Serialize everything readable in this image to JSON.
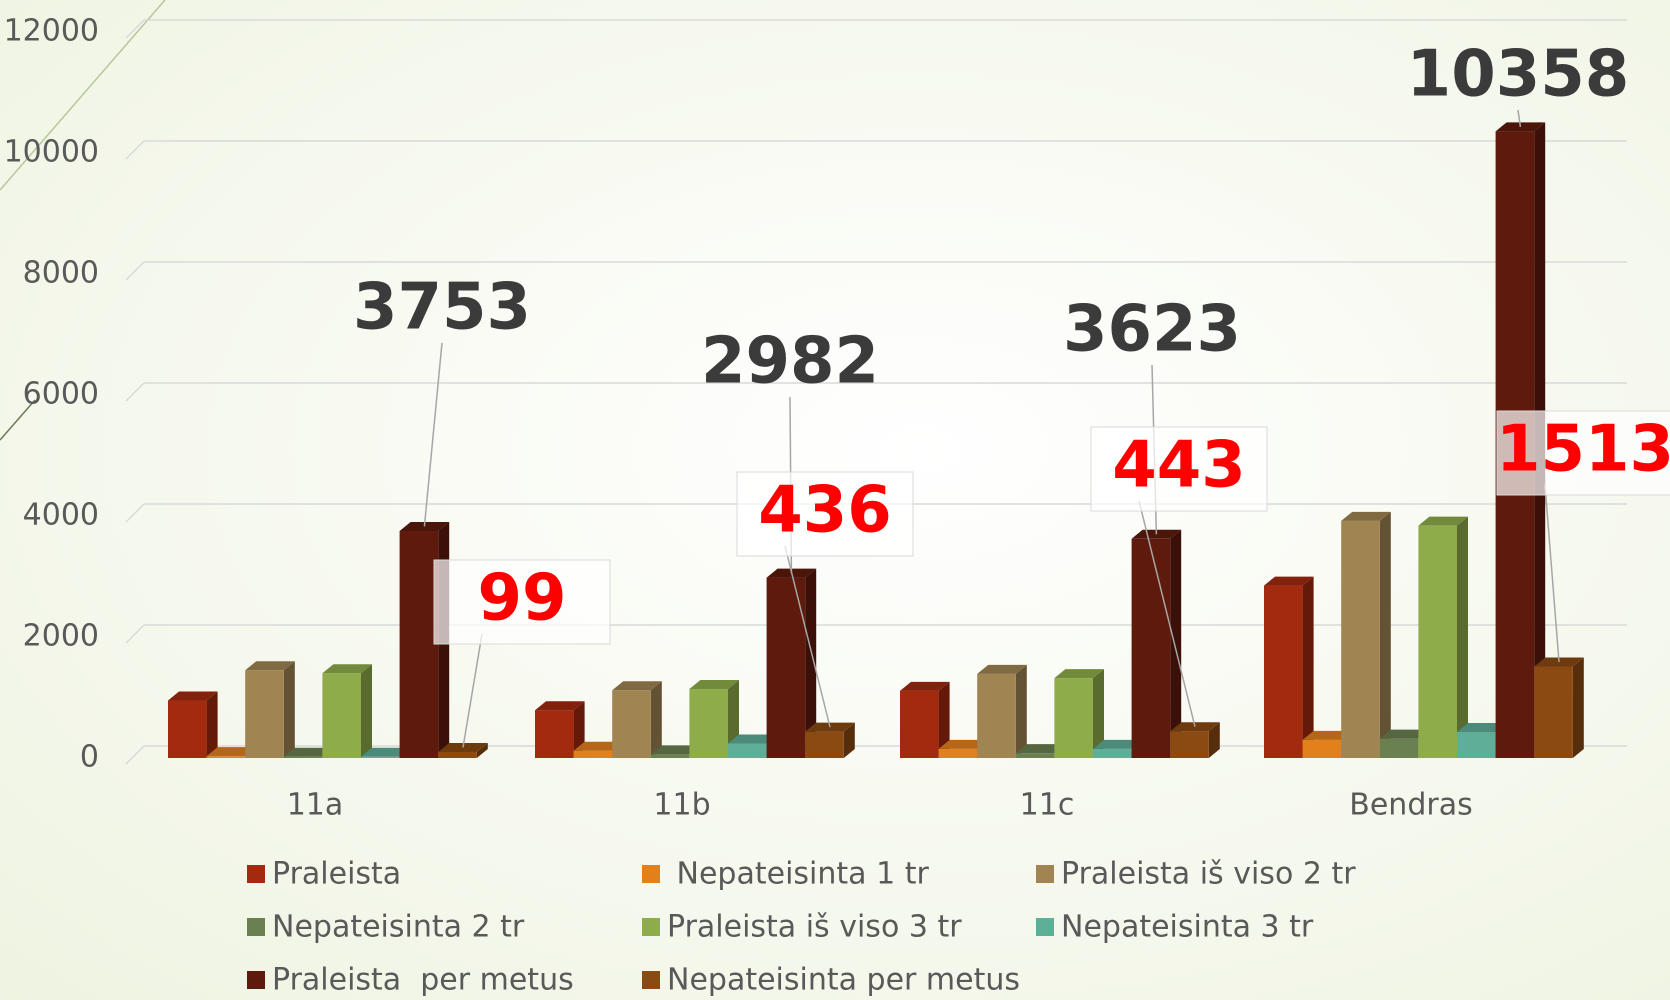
{
  "chart_data": {
    "type": "bar3d",
    "categories": [
      "11a",
      "11b",
      "11c",
      "Bendras"
    ],
    "ylim": [
      0,
      12000
    ],
    "yticks": [
      0,
      2000,
      4000,
      6000,
      8000,
      10000,
      12000
    ],
    "grid": true,
    "legend": "bottom",
    "series": [
      {
        "name": "Praleista",
        "color": "#a3290f",
        "values": [
          950,
          790,
          1110,
          2850
        ]
      },
      {
        "name": " Nepateisinta 1 tr",
        "color": "#e2801c",
        "values": [
          30,
          120,
          150,
          300
        ]
      },
      {
        "name": "Praleista iš viso 2 tr",
        "color": "#a08452",
        "values": [
          1450,
          1120,
          1390,
          3920
        ]
      },
      {
        "name": "Nepateisinta 2 tr",
        "color": "#6b8050",
        "values": [
          20,
          60,
          80,
          320
        ]
      },
      {
        "name": "Praleista iš viso 3 tr",
        "color": "#8fac4a",
        "values": [
          1400,
          1140,
          1320,
          3840
        ]
      },
      {
        "name": "Nepateisinta 3 tr",
        "color": "#5fae98",
        "values": [
          20,
          240,
          150,
          430
        ]
      },
      {
        "name": "Praleista  per metus",
        "color": "#5e1a0d",
        "values": [
          3753,
          2982,
          3623,
          10358
        ],
        "data_labels": true,
        "label_color": "#3b3b3b"
      },
      {
        "name": "Nepateisinta per metus",
        "color": "#8a4a12",
        "values": [
          99,
          436,
          443,
          1513
        ],
        "data_labels": true,
        "label_color": "#ff0000"
      }
    ]
  }
}
